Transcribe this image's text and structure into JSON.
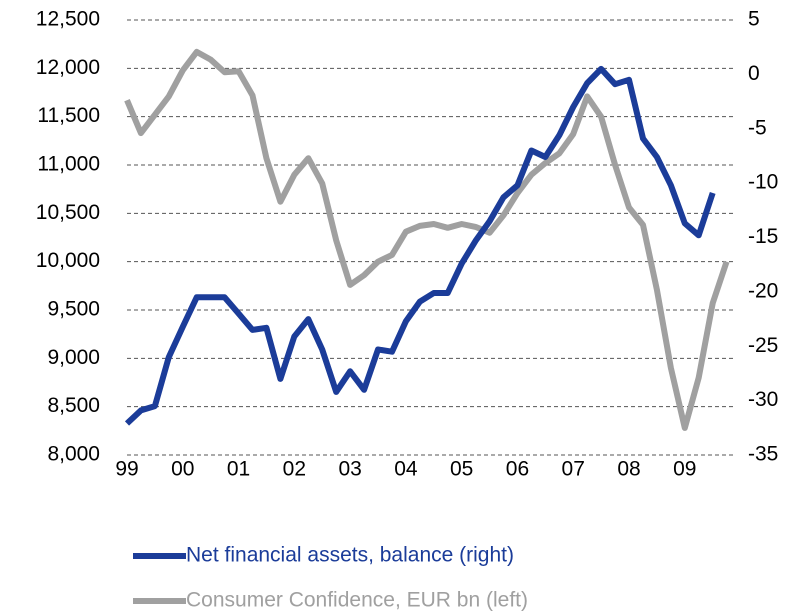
{
  "chart_data": {
    "type": "line",
    "x": [
      1999.0,
      1999.25,
      1999.5,
      1999.75,
      2000.0,
      2000.25,
      2000.5,
      2000.75,
      2001.0,
      2001.25,
      2001.5,
      2001.75,
      2002.0,
      2002.25,
      2002.5,
      2002.75,
      2003.0,
      2003.25,
      2003.5,
      2003.75,
      2004.0,
      2004.25,
      2004.5,
      2004.75,
      2005.0,
      2005.25,
      2005.5,
      2005.75,
      2006.0,
      2006.25,
      2006.5,
      2006.75,
      2007.0,
      2007.25,
      2007.5,
      2007.75,
      2008.0,
      2008.25,
      2008.5,
      2008.75,
      2009.0,
      2009.25,
      2009.5,
      2009.75
    ],
    "series": [
      {
        "name": "Net financial assets, balance (right)",
        "color": "#1b3c99",
        "axis": "y2",
        "values": [
          -32.1,
          -30.9,
          -30.5,
          -26.0,
          -23.2,
          -20.5,
          -20.5,
          -20.5,
          -22.0,
          -23.5,
          -23.3,
          -28.0,
          -24.1,
          -22.5,
          -25.3,
          -29.2,
          -27.3,
          -29.0,
          -25.3,
          -25.5,
          -22.7,
          -20.9,
          -20.1,
          -20.1,
          -17.4,
          -15.3,
          -13.5,
          -11.3,
          -10.2,
          -7.0,
          -7.6,
          -5.6,
          -3.0,
          -0.8,
          0.5,
          -0.9,
          -0.5,
          -5.9,
          -7.6,
          -10.2,
          -13.7,
          -14.8,
          -10.9,
          null
        ]
      },
      {
        "name": "Consumer Confidence, EUR bn (left)",
        "color": "#a0a0a0",
        "values": [
          11670,
          11330,
          11520,
          11710,
          11980,
          12170,
          12090,
          11960,
          11970,
          11720,
          11070,
          10620,
          10900,
          11070,
          10810,
          10220,
          9760,
          9860,
          10000,
          10070,
          10310,
          10370,
          10390,
          10350,
          10390,
          10360,
          10300,
          10480,
          10710,
          10900,
          11020,
          11120,
          11320,
          11710,
          11500,
          11000,
          10560,
          10380,
          9710,
          8900,
          8280,
          8800,
          9570,
          10000
        ]
      }
    ],
    "xlim": [
      1999,
      2009.9
    ],
    "xticks": [
      {
        "value": 1999,
        "label": "99"
      },
      {
        "value": 2000,
        "label": "00"
      },
      {
        "value": 2001,
        "label": "01"
      },
      {
        "value": 2002,
        "label": "02"
      },
      {
        "value": 2003,
        "label": "03"
      },
      {
        "value": 2004,
        "label": "04"
      },
      {
        "value": 2005,
        "label": "05"
      },
      {
        "value": 2006,
        "label": "06"
      },
      {
        "value": 2007,
        "label": "07"
      },
      {
        "value": 2008,
        "label": "08"
      },
      {
        "value": 2009,
        "label": "09"
      }
    ],
    "ylim": [
      8000,
      12500
    ],
    "yticks": [
      {
        "value": 8000,
        "label": "8,000"
      },
      {
        "value": 8500,
        "label": "8,500"
      },
      {
        "value": 9000,
        "label": "9,000"
      },
      {
        "value": 9500,
        "label": "9,500"
      },
      {
        "value": 10000,
        "label": "10,000"
      },
      {
        "value": 10500,
        "label": "10,500"
      },
      {
        "value": 11000,
        "label": "11,000"
      },
      {
        "value": 11500,
        "label": "11,500"
      },
      {
        "value": 12000,
        "label": "12,000"
      },
      {
        "value": 12500,
        "label": "12,500"
      }
    ],
    "y2lim": [
      -35,
      5
    ],
    "y2ticks": [
      -35,
      -30,
      -25,
      -20,
      -15,
      -10,
      -5,
      0,
      5
    ],
    "grid": true
  }
}
